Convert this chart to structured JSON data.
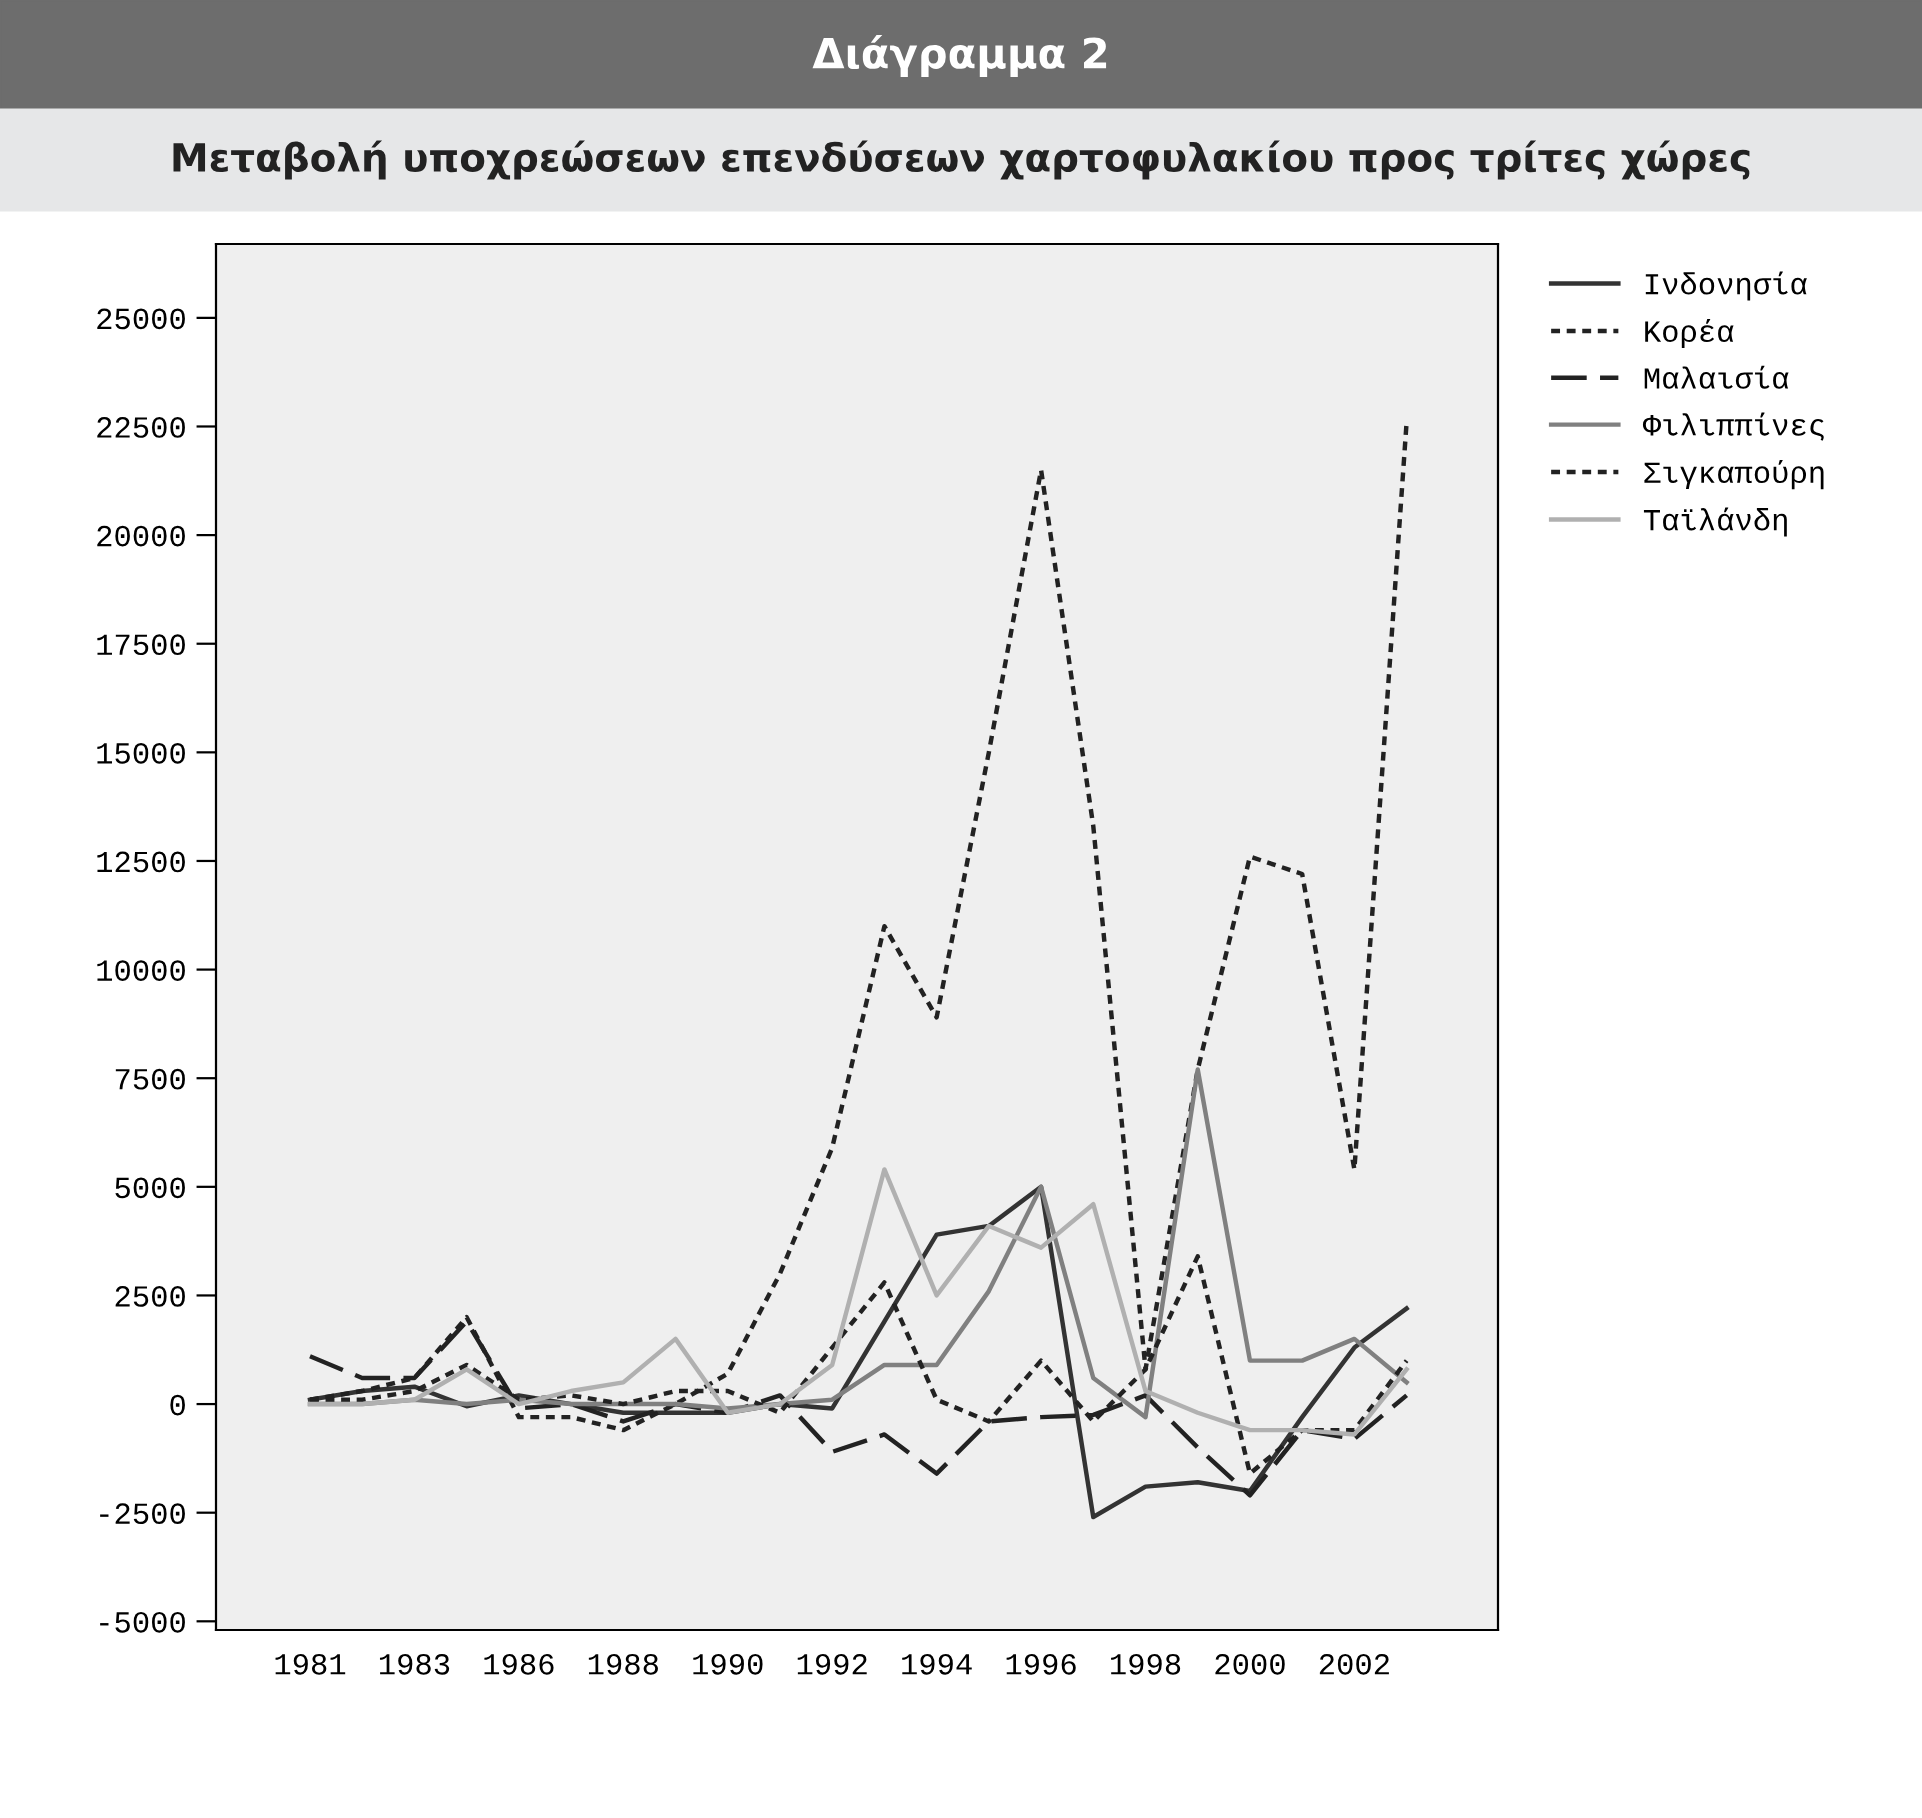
{
  "chart_data": {
    "type": "line",
    "title": "Διάγραμμα 2",
    "subtitle": "Μεταβολή υποχρεώσεων επενδύσεων χαρτοφυλακίου προς τρίτες χώρες",
    "categories": [
      "1981",
      null,
      "1983",
      null,
      "1986",
      null,
      "1988",
      null,
      "1990",
      null,
      "1992",
      null,
      "1994",
      null,
      "1996",
      null,
      "1998",
      null,
      "2000",
      null,
      "2002",
      null
    ],
    "series": [
      {
        "name": "Ινδονησία",
        "color": "#333333",
        "line_style": "solid",
        "values": [
          100,
          300,
          400,
          -50,
          200,
          0,
          -200,
          -200,
          -200,
          0,
          -100,
          1900,
          3900,
          4100,
          5000,
          -2600,
          -1900,
          -1800,
          -2000,
          -300,
          1300,
          2200
        ]
      },
      {
        "name": "Κορέα",
        "color": "#222222",
        "line_style": "dotted",
        "values": [
          100,
          300,
          600,
          2000,
          -300,
          -300,
          -600,
          0,
          700,
          3000,
          5900,
          11000,
          8900,
          15000,
          21500,
          13300,
          800,
          7700,
          12600,
          12200,
          5400,
          22600
        ]
      },
      {
        "name": "Μαλαισία",
        "color": "#222222",
        "line_style": "dashed",
        "values": [
          1100,
          600,
          600,
          1900,
          -100,
          0,
          -400,
          0,
          -200,
          200,
          -1100,
          -700,
          -1600,
          -400,
          -300,
          -250,
          200,
          -1000,
          -2100,
          -600,
          -800,
          200
        ]
      },
      {
        "name": "Φιλιππίνες",
        "color": "#808080",
        "line_style": "solid",
        "values": [
          0,
          0,
          100,
          0,
          100,
          0,
          0,
          0,
          -100,
          0,
          100,
          900,
          900,
          2600,
          5000,
          600,
          -300,
          7700,
          1000,
          1000,
          1500,
          500
        ]
      },
      {
        "name": "Σιγκαπούρη",
        "color": "#222222",
        "line_style": "dotted",
        "values": [
          100,
          100,
          300,
          900,
          100,
          200,
          0,
          300,
          300,
          -200,
          1300,
          2800,
          100,
          -400,
          1000,
          -400,
          800,
          3400,
          -1600,
          -600,
          -600,
          1000
        ]
      },
      {
        "name": "Ταϊλάνδη",
        "color": "#b0b0b0",
        "line_style": "solid",
        "values": [
          0,
          0,
          100,
          800,
          0,
          300,
          500,
          1500,
          -200,
          0,
          900,
          5400,
          2500,
          4100,
          3600,
          4600,
          300,
          -200,
          -600,
          -600,
          -700,
          800
        ]
      }
    ],
    "ylim": [
      -5200,
      26700
    ],
    "yticks": [
      {
        "value": -5000,
        "label": "-5000"
      },
      {
        "value": -2500,
        "label": "-2500"
      },
      0,
      2500,
      5000,
      7500,
      10000,
      12500,
      15000,
      17500,
      20000,
      22500,
      25000
    ],
    "grid": false,
    "legend": "top right",
    "marker": "none"
  }
}
